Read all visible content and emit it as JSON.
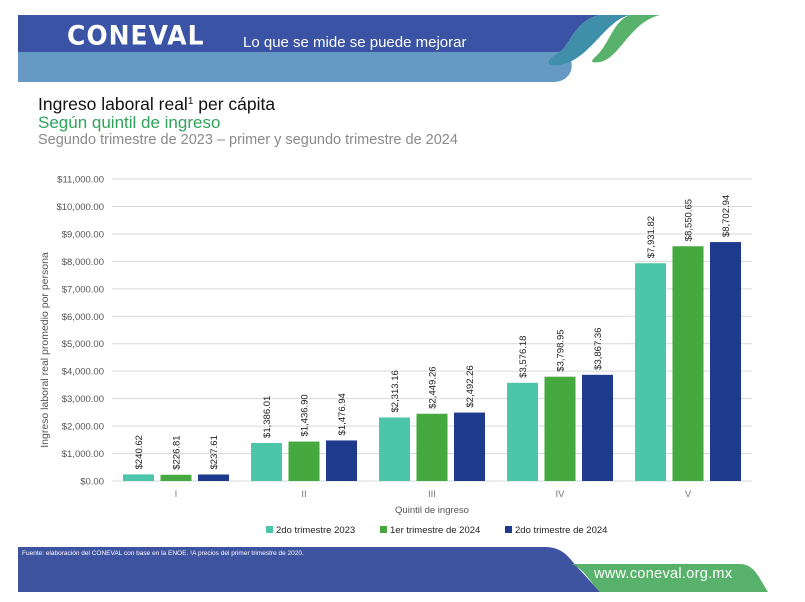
{
  "header": {
    "logo": "CONEVAL",
    "tagline": "Lo que se mide se puede mejorar"
  },
  "titles": {
    "title": "Ingreso laboral real",
    "title_superscript": "1",
    "title_suffix": " per cápita",
    "subtitle": "Según quintil de ingreso",
    "period": "Segundo trimestre de 2023 – primer y segundo trimestre de 2024"
  },
  "footer": {
    "source": "Fuente: elaboración del CONEVAL con base en la ENOE. ¹A precios del primer trimestre de 2020.",
    "website": "www.coneval.org.mx"
  },
  "colors": {
    "header_blue": "#3a53a4",
    "header_light_blue": "#6699c4",
    "accent_green": "#59b26b",
    "accent_teal": "#3f8fab",
    "series_2do_2023": "#4cc6aa",
    "series_1er_2024": "#45a93f",
    "series_2do_2024": "#1d3a8c"
  },
  "chart_data": {
    "type": "bar",
    "title": "Ingreso laboral real per cápita",
    "xlabel": "Quintil de ingreso",
    "ylabel": "Ingreso laboral real promedio por persona",
    "categories": [
      "I",
      "II",
      "III",
      "IV",
      "V"
    ],
    "ylim": [
      0,
      11000
    ],
    "yticks": [
      0,
      1000,
      2000,
      3000,
      4000,
      5000,
      6000,
      7000,
      8000,
      9000,
      10000,
      11000
    ],
    "ytick_labels": [
      "$0.00",
      "$1,000.00",
      "$2,000.00",
      "$3,000.00",
      "$4,000.00",
      "$5,000.00",
      "$6,000.00",
      "$7,000.00",
      "$8,000.00",
      "$9,000.00",
      "$10,000.00",
      "$11,000.00"
    ],
    "grid": true,
    "legend_position": "bottom",
    "series": [
      {
        "name": "2do trimestre 2023",
        "color": "#4cc6aa",
        "values": [
          240.62,
          1386.01,
          2313.16,
          3576.18,
          7931.82
        ],
        "labels": [
          "$240.62",
          "$1,386.01",
          "$2,313.16",
          "$3,576.18",
          "$7,931.82"
        ]
      },
      {
        "name": "1er trimestre de 2024",
        "color": "#45a93f",
        "values": [
          226.81,
          1436.9,
          2449.26,
          3798.95,
          8550.65
        ],
        "labels": [
          "$226.81",
          "$1,436.90",
          "$2,449.26",
          "$3,798.95",
          "$8,550.65"
        ]
      },
      {
        "name": "2do trimestre de 2024",
        "color": "#1d3a8c",
        "values": [
          237.61,
          1476.94,
          2492.26,
          3867.36,
          8702.94
        ],
        "labels": [
          "$237.61",
          "$1,476.94",
          "$2,492.26",
          "$3,867.36",
          "$8,702.94"
        ]
      }
    ]
  }
}
